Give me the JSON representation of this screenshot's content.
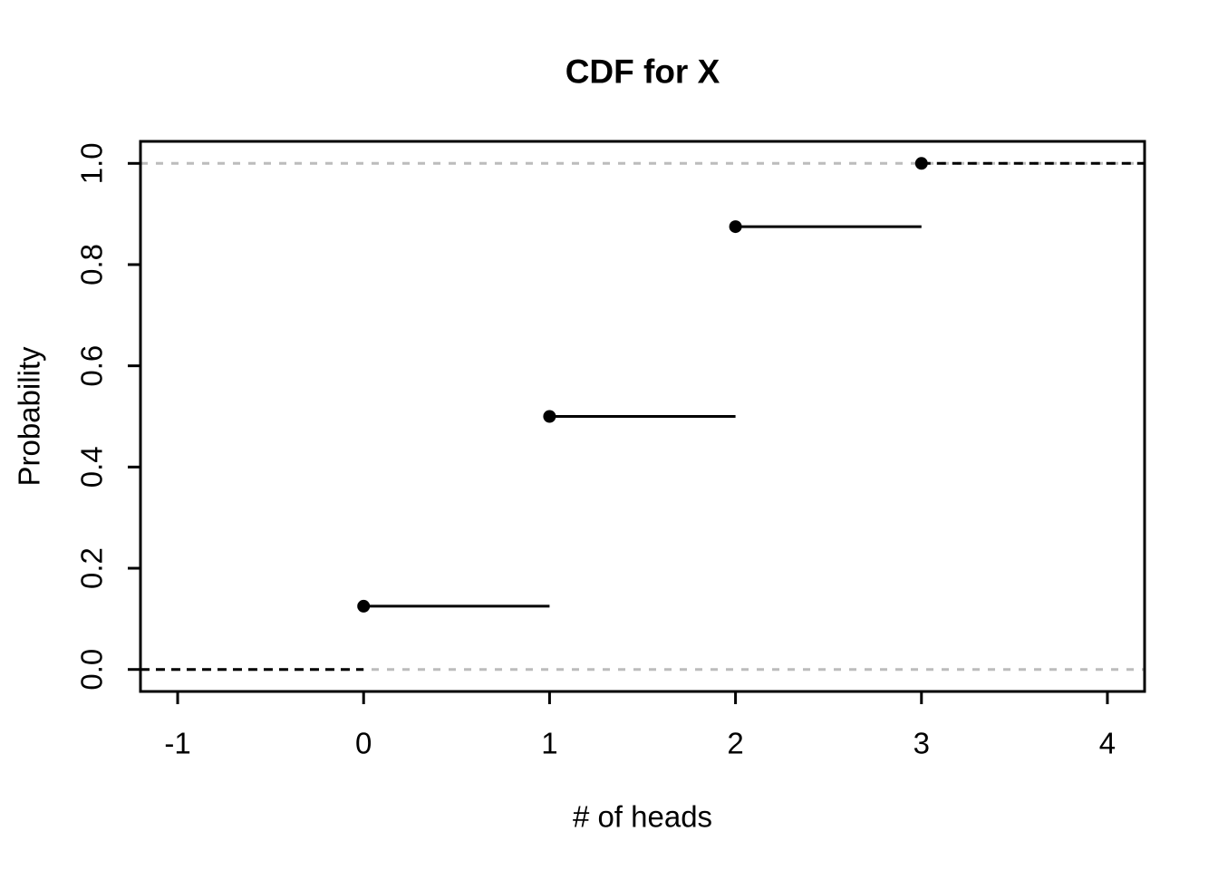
{
  "chart_data": {
    "type": "line",
    "subtype": "step-cdf",
    "title": "CDF for X",
    "xlabel": "# of heads",
    "ylabel": "Probability",
    "xlim": [
      -1.2,
      4.2
    ],
    "ylim": [
      -0.0435,
      1.0435
    ],
    "x_ticks": [
      -1,
      0,
      1,
      2,
      3,
      4
    ],
    "x_tick_labels": [
      "-1",
      "0",
      "1",
      "2",
      "3",
      "4"
    ],
    "y_ticks": [
      0.0,
      0.2,
      0.4,
      0.6,
      0.8,
      1.0
    ],
    "y_tick_labels": [
      "0.0",
      "0.2",
      "0.4",
      "0.6",
      "0.8",
      "1.0"
    ],
    "points": [
      {
        "x": 0,
        "y": 0.125
      },
      {
        "x": 1,
        "y": 0.5
      },
      {
        "x": 2,
        "y": 0.875
      },
      {
        "x": 3,
        "y": 1.0
      }
    ],
    "solid_segments": [
      {
        "x1": 0,
        "y1": 0.125,
        "x2": 1,
        "y2": 0.125
      },
      {
        "x1": 1,
        "y1": 0.5,
        "x2": 2,
        "y2": 0.5
      },
      {
        "x1": 2,
        "y1": 0.875,
        "x2": 3,
        "y2": 0.875
      }
    ],
    "dashed_black_segments": [
      {
        "x1": -1.2,
        "y1": 0,
        "x2": 0,
        "y2": 0
      },
      {
        "x1": 3,
        "y1": 1,
        "x2": 4.2,
        "y2": 1
      }
    ],
    "dashed_gray_guides": [
      0,
      1
    ],
    "grid": false,
    "legend": null,
    "colors": {
      "series": "#000000",
      "guide": "#bcbcbc",
      "axis": "#000000",
      "background": "#ffffff"
    }
  }
}
